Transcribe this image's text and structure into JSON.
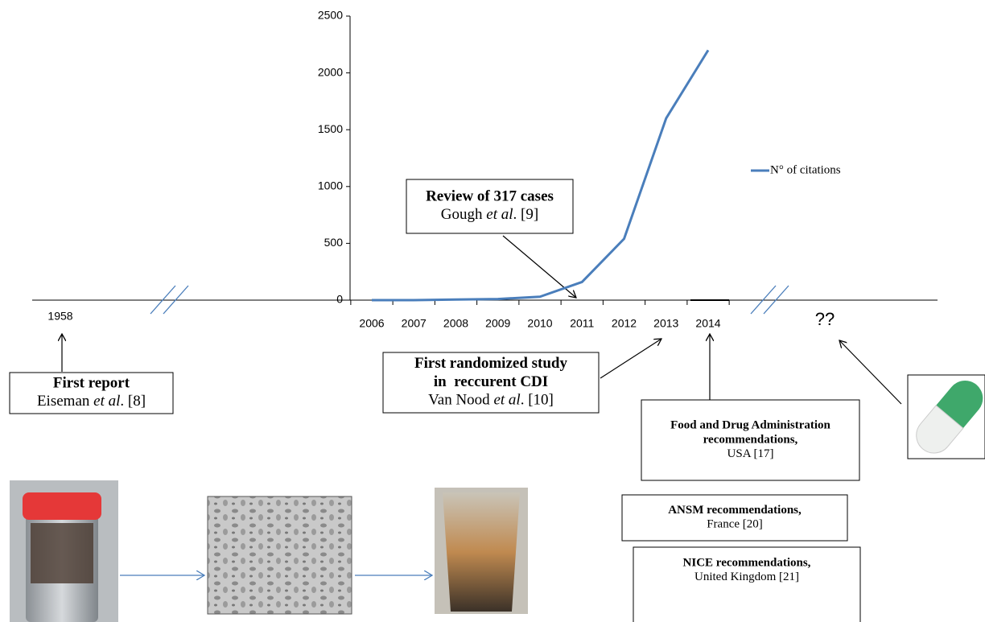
{
  "chart_data": {
    "type": "line",
    "categories": [
      "2006",
      "2007",
      "2008",
      "2009",
      "2010",
      "2011",
      "2012",
      "2013",
      "2014"
    ],
    "series": [
      {
        "name": "N° of citations",
        "color": "#4a7ebb",
        "values": [
          0,
          0,
          5,
          10,
          30,
          160,
          540,
          1600,
          2200
        ]
      }
    ],
    "ylim": [
      0,
      2500
    ],
    "yticks": [
      0,
      500,
      1000,
      1500,
      2000,
      2500
    ],
    "legend": "right"
  },
  "timeline": {
    "start_label": "1958",
    "end_label": "??"
  },
  "annotations": [
    {
      "bold": [
        "Review of 317 cases"
      ],
      "text": [
        "Gough ",
        "et al",
        ". [9]"
      ]
    },
    {
      "bold": [
        "First randomized study",
        "in  reccurent CDI"
      ],
      "text": [
        "Van Nood ",
        "et al",
        ". [10]"
      ]
    },
    {
      "bold": [
        "First report"
      ],
      "text": [
        "Eiseman ",
        "et al",
        ". [8]"
      ]
    },
    {
      "bold": [
        "Food and Drug Administration",
        "recommendations,"
      ],
      "text": [
        "USA [17]"
      ]
    },
    {
      "bold": [
        "ANSM recommendations,"
      ],
      "text": [
        "France [20]"
      ]
    },
    {
      "bold": [
        "NICE recommendations,"
      ],
      "text": [
        "United Kingdom [21]"
      ]
    }
  ]
}
